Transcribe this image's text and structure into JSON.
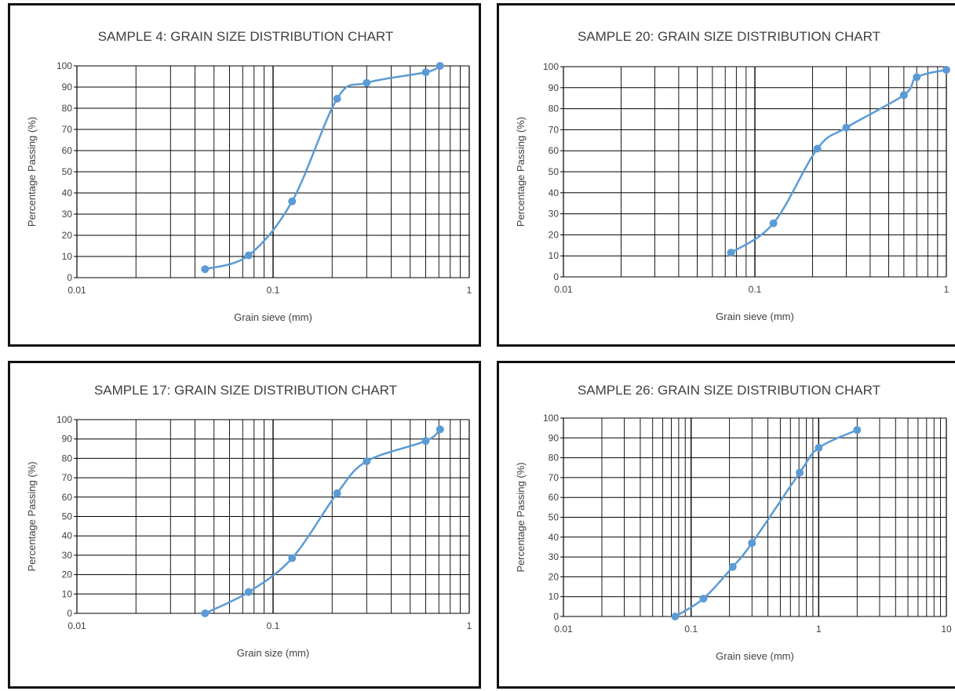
{
  "charts": [
    {
      "type": "line",
      "title": "SAMPLE 4: GRAIN SIZE DISTRIBUTION CHART",
      "xlabel": "Grain sieve (mm)",
      "ylabel": "Percentage Passing (%)",
      "xscale": "log",
      "xlim": [
        0.01,
        1
      ],
      "ylim": [
        0,
        100
      ],
      "x_ticks": [
        "0.01",
        "0.1",
        "1"
      ],
      "y_ticks": [
        "0",
        "10",
        "20",
        "30",
        "40",
        "50",
        "60",
        "70",
        "80",
        "90",
        "100"
      ],
      "grid": true,
      "line_color": "#5b9bd5",
      "x": [
        0.045,
        0.075,
        0.125,
        0.212,
        0.3,
        0.6,
        0.71
      ],
      "y": [
        4,
        10.5,
        36,
        84.5,
        92,
        97,
        100
      ]
    },
    {
      "type": "line",
      "title": "SAMPLE 20: GRAIN SIZE DISTRIBUTION CHART",
      "xlabel": "Grain sieve (mm)",
      "ylabel": "Percentage Passing (%)",
      "xscale": "log",
      "xlim": [
        0.01,
        1
      ],
      "ylim": [
        0,
        100
      ],
      "x_ticks": [
        "0.01",
        "0.1",
        "1"
      ],
      "y_ticks": [
        "0",
        "10",
        "20",
        "30",
        "40",
        "50",
        "60",
        "70",
        "80",
        "90",
        "100"
      ],
      "grid": true,
      "line_color": "#5b9bd5",
      "x": [
        0.075,
        0.125,
        0.212,
        0.3,
        0.6,
        0.7,
        1.0
      ],
      "y": [
        11.5,
        25.5,
        61,
        71,
        86.5,
        95,
        98.5
      ]
    },
    {
      "type": "line",
      "title": "SAMPLE 17: GRAIN SIZE DISTRIBUTION CHART",
      "xlabel": "Grain size (mm)",
      "ylabel": "Percentage Passing (%)",
      "xscale": "log",
      "xlim": [
        0.01,
        1
      ],
      "ylim": [
        0,
        100
      ],
      "x_ticks": [
        "0.01",
        "0.1",
        "1"
      ],
      "y_ticks": [
        "0",
        "10",
        "20",
        "30",
        "40",
        "50",
        "60",
        "70",
        "80",
        "90",
        "100"
      ],
      "grid": true,
      "line_color": "#5b9bd5",
      "x": [
        0.045,
        0.075,
        0.125,
        0.212,
        0.3,
        0.6,
        0.71
      ],
      "y": [
        0,
        11,
        28.5,
        62,
        78.5,
        89,
        95
      ]
    },
    {
      "type": "line",
      "title": "SAMPLE 26: GRAIN SIZE DISTRIBUTION CHART",
      "xlabel": "Grain sieve (mm)",
      "ylabel": "Percentage Passing (%)",
      "xscale": "log",
      "xlim": [
        0.01,
        10
      ],
      "ylim": [
        0,
        100
      ],
      "x_ticks": [
        "0.01",
        "0.1",
        "1",
        "10"
      ],
      "y_ticks": [
        "0",
        "10",
        "20",
        "30",
        "40",
        "50",
        "60",
        "70",
        "80",
        "90",
        "100"
      ],
      "grid": true,
      "line_color": "#5b9bd5",
      "x": [
        0.075,
        0.125,
        0.212,
        0.3,
        0.71,
        1.0,
        2.0
      ],
      "y": [
        0,
        9,
        25,
        37,
        72.5,
        85,
        94
      ]
    }
  ]
}
